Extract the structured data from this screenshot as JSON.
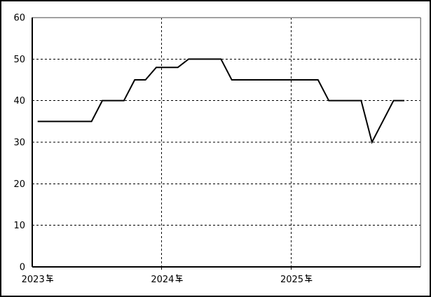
{
  "window": {
    "background": "#ffffff",
    "border_color": "#000000"
  },
  "chart_data": {
    "type": "line",
    "title": "",
    "xlabel": "",
    "ylabel": "",
    "x_unit": "month",
    "x": [
      "2023-01",
      "2023-02",
      "2023-03",
      "2023-04",
      "2023-05",
      "2023-06",
      "2023-07",
      "2023-08",
      "2023-09",
      "2023-10",
      "2023-11",
      "2023-12",
      "2024-01",
      "2024-02",
      "2024-03",
      "2024-04",
      "2024-05",
      "2024-06",
      "2024-07",
      "2024-08",
      "2024-09",
      "2024-10",
      "2024-11",
      "2024-12",
      "2025-01",
      "2025-02",
      "2025-03",
      "2025-04",
      "2025-05",
      "2025-06",
      "2025-07",
      "2025-08",
      "2025-09",
      "2025-10",
      "2025-11"
    ],
    "values": [
      35,
      35,
      35,
      35,
      35,
      35,
      40,
      40,
      40,
      45,
      45,
      48,
      48,
      48,
      50,
      50,
      50,
      50,
      45,
      45,
      45,
      45,
      45,
      45,
      45,
      45,
      45,
      40,
      40,
      40,
      40,
      30,
      35,
      40,
      40
    ],
    "ylim": [
      0,
      60
    ],
    "y_ticks": [
      0,
      10,
      20,
      30,
      40,
      50,
      60
    ],
    "x_axis_years": [
      {
        "label": "2023年",
        "start_index": 0
      },
      {
        "label": "2024年",
        "start_index": 12
      },
      {
        "label": "2025年",
        "start_index": 24
      }
    ],
    "total_month_slots": 36,
    "grid": "dashed",
    "legend": "none",
    "line_color": "#000000",
    "grid_color": "#000000",
    "axis_color": "#000000",
    "plot_border_color": "#848484",
    "plot_background": "#ffffff"
  }
}
